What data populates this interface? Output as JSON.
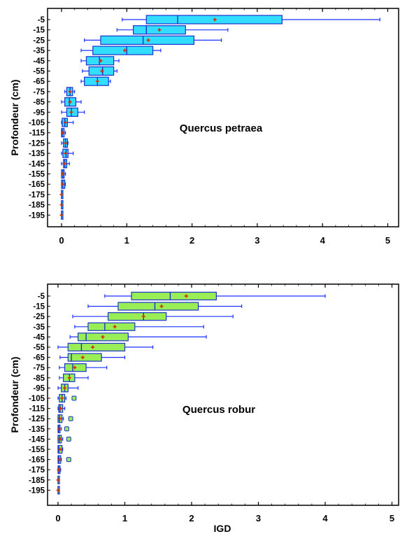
{
  "figure": {
    "ylabel": "Profondeur (cm)",
    "xlabel": "IGD"
  },
  "chart_data": [
    {
      "type": "boxplot",
      "annotation": "Quercus petraea",
      "ylabel": "Profondeur (cm)",
      "xlabel": "",
      "xlim": [
        -0.1,
        5.05
      ],
      "xticks": [
        "0",
        "1",
        "2",
        "3",
        "4",
        "5"
      ],
      "grid": false,
      "colors": {
        "box": "#33ddff",
        "edge": "#1a33cc",
        "whisker": "#1a33ff",
        "mean": "#cc3300",
        "frame": "#000000"
      },
      "categories": [
        "-5",
        "-15",
        "-25",
        "-35",
        "-45",
        "-55",
        "-65",
        "-75",
        "-85",
        "-95",
        "-105",
        "-115",
        "-125",
        "-135",
        "-145",
        "-155",
        "-165",
        "-175",
        "-185",
        "-195"
      ],
      "boxes": [
        {
          "min": 0.93,
          "q1": 1.3,
          "median": 1.78,
          "q3": 3.38,
          "max": 4.88,
          "mean": 2.35
        },
        {
          "min": 0.85,
          "q1": 1.1,
          "median": 1.3,
          "q3": 1.9,
          "max": 2.55,
          "mean": 1.5
        },
        {
          "min": 0.35,
          "q1": 0.6,
          "median": 1.25,
          "q3": 2.03,
          "max": 2.45,
          "mean": 1.33
        },
        {
          "min": 0.3,
          "q1": 0.48,
          "median": 1.0,
          "q3": 1.4,
          "max": 1.52,
          "mean": 0.97
        },
        {
          "min": 0.3,
          "q1": 0.38,
          "median": 0.58,
          "q3": 0.8,
          "max": 0.88,
          "mean": 0.6
        },
        {
          "min": 0.32,
          "q1": 0.42,
          "median": 0.63,
          "q3": 0.8,
          "max": 0.85,
          "mean": 0.62
        },
        {
          "min": 0.3,
          "q1": 0.35,
          "median": 0.55,
          "q3": 0.72,
          "max": 0.75,
          "mean": 0.55
        },
        {
          "min": 0.05,
          "q1": 0.08,
          "median": 0.13,
          "q3": 0.17,
          "max": 0.2,
          "mean": 0.13
        },
        {
          "min": 0.0,
          "q1": 0.05,
          "median": 0.12,
          "q3": 0.22,
          "max": 0.3,
          "mean": 0.13
        },
        {
          "min": 0.0,
          "q1": 0.08,
          "median": 0.15,
          "q3": 0.25,
          "max": 0.35,
          "mean": 0.15
        },
        {
          "min": 0.0,
          "q1": 0.01,
          "median": 0.05,
          "q3": 0.09,
          "max": 0.18,
          "mean": 0.06
        },
        {
          "min": 0.0,
          "q1": 0.0,
          "median": 0.01,
          "q3": 0.04,
          "max": 0.06,
          "mean": 0.02
        },
        {
          "min": 0.0,
          "q1": 0.03,
          "median": 0.06,
          "q3": 0.09,
          "max": 0.1,
          "mean": 0.06
        },
        {
          "min": 0.0,
          "q1": 0.02,
          "median": 0.07,
          "q3": 0.1,
          "max": 0.18,
          "mean": 0.06
        },
        {
          "min": 0.0,
          "q1": 0.03,
          "median": 0.05,
          "q3": 0.08,
          "max": 0.12,
          "mean": 0.05
        },
        {
          "min": 0.0,
          "q1": 0.0,
          "median": 0.02,
          "q3": 0.04,
          "max": 0.06,
          "mean": 0.02
        },
        {
          "min": 0.0,
          "q1": 0.0,
          "median": 0.02,
          "q3": 0.05,
          "max": 0.06,
          "mean": 0.02
        },
        {
          "min": 0.0,
          "q1": 0.0,
          "median": 0.0,
          "q3": 0.01,
          "max": 0.02,
          "mean": 0.0
        },
        {
          "min": 0.0,
          "q1": 0.0,
          "median": 0.0,
          "q3": 0.01,
          "max": 0.01,
          "mean": 0.0
        },
        {
          "min": 0.0,
          "q1": 0.0,
          "median": 0.0,
          "q3": 0.01,
          "max": 0.01,
          "mean": 0.0
        }
      ],
      "outliers": []
    },
    {
      "type": "boxplot",
      "annotation": "Quercus robur",
      "ylabel": "Profondeur (cm)",
      "xlabel": "IGD",
      "xlim": [
        -0.1,
        5.05
      ],
      "xticks": [
        "0",
        "1",
        "2",
        "3",
        "4",
        "5"
      ],
      "grid": false,
      "colors": {
        "box": "#99ee55",
        "edge": "#1a33cc",
        "whisker": "#1a33ff",
        "mean": "#cc3300",
        "frame": "#000000"
      },
      "categories": [
        "-5",
        "-15",
        "-25",
        "-35",
        "-45",
        "-55",
        "-65",
        "-75",
        "-85",
        "-95",
        "-105",
        "-115",
        "-125",
        "-135",
        "-145",
        "-155",
        "-165",
        "-175",
        "-185",
        "-195"
      ],
      "boxes": [
        {
          "min": 0.7,
          "q1": 1.1,
          "median": 1.68,
          "q3": 2.37,
          "max": 4.0,
          "mean": 1.92
        },
        {
          "min": 0.45,
          "q1": 0.9,
          "median": 1.45,
          "q3": 2.1,
          "max": 2.75,
          "mean": 1.55
        },
        {
          "min": 0.22,
          "q1": 0.75,
          "median": 1.28,
          "q3": 1.62,
          "max": 2.62,
          "mean": 1.28
        },
        {
          "min": 0.25,
          "q1": 0.45,
          "median": 0.7,
          "q3": 1.15,
          "max": 2.18,
          "mean": 0.85
        },
        {
          "min": 0.18,
          "q1": 0.3,
          "median": 0.42,
          "q3": 1.05,
          "max": 2.22,
          "mean": 0.67
        },
        {
          "min": 0.0,
          "q1": 0.15,
          "median": 0.35,
          "q3": 1.0,
          "max": 1.42,
          "mean": 0.52
        },
        {
          "min": 0.03,
          "q1": 0.15,
          "median": 0.2,
          "q3": 0.65,
          "max": 1.0,
          "mean": 0.37
        },
        {
          "min": 0.02,
          "q1": 0.1,
          "median": 0.22,
          "q3": 0.42,
          "max": 0.73,
          "mean": 0.25
        },
        {
          "min": 0.02,
          "q1": 0.08,
          "median": 0.17,
          "q3": 0.25,
          "max": 0.45,
          "mean": 0.17
        },
        {
          "min": 0.0,
          "q1": 0.05,
          "median": 0.1,
          "q3": 0.15,
          "max": 0.3,
          "mean": 0.1
        },
        {
          "min": 0.0,
          "q1": 0.02,
          "median": 0.06,
          "q3": 0.1,
          "max": 0.12,
          "mean": 0.06
        },
        {
          "min": 0.0,
          "q1": 0.01,
          "median": 0.03,
          "q3": 0.07,
          "max": 0.1,
          "mean": 0.04
        },
        {
          "min": 0.0,
          "q1": 0.0,
          "median": 0.02,
          "q3": 0.06,
          "max": 0.08,
          "mean": 0.03
        },
        {
          "min": 0.0,
          "q1": 0.0,
          "median": 0.01,
          "q3": 0.03,
          "max": 0.05,
          "mean": 0.02
        },
        {
          "min": 0.0,
          "q1": 0.0,
          "median": 0.02,
          "q3": 0.05,
          "max": 0.07,
          "mean": 0.03
        },
        {
          "min": 0.0,
          "q1": 0.0,
          "median": 0.01,
          "q3": 0.06,
          "max": 0.07,
          "mean": 0.03
        },
        {
          "min": 0.0,
          "q1": 0.0,
          "median": 0.01,
          "q3": 0.04,
          "max": 0.05,
          "mean": 0.02
        },
        {
          "min": 0.0,
          "q1": 0.0,
          "median": 0.01,
          "q3": 0.03,
          "max": 0.04,
          "mean": 0.01
        },
        {
          "min": 0.0,
          "q1": 0.0,
          "median": 0.0,
          "q3": 0.01,
          "max": 0.01,
          "mean": 0.0
        },
        {
          "min": 0.0,
          "q1": 0.0,
          "median": 0.0,
          "q3": 0.01,
          "max": 0.01,
          "mean": 0.0
        }
      ],
      "outliers": [
        {
          "row": 10,
          "x": 0.24
        },
        {
          "row": 12,
          "x": 0.19
        },
        {
          "row": 13,
          "x": 0.13
        },
        {
          "row": 14,
          "x": 0.16
        },
        {
          "row": 16,
          "x": 0.16
        }
      ]
    }
  ]
}
